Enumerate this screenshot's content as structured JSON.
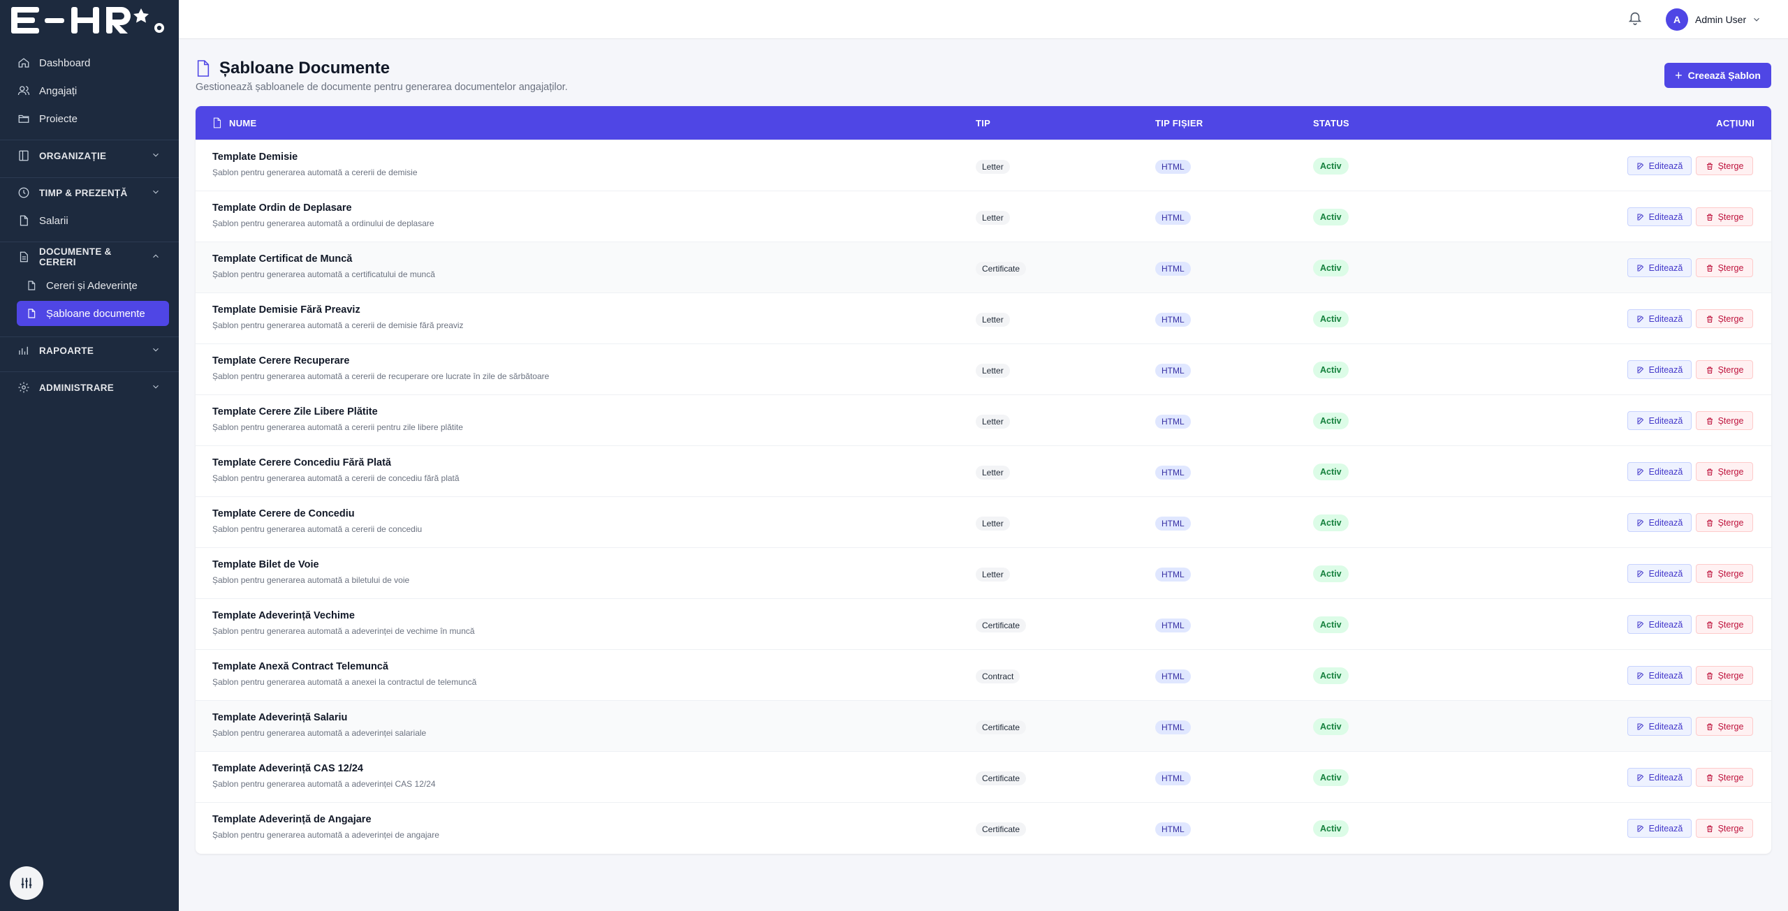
{
  "app": {
    "logo_text": "E-HR"
  },
  "sidebar": {
    "items": [
      {
        "label": "Dashboard",
        "icon": "home-icon"
      },
      {
        "label": "Angajați",
        "icon": "users-icon"
      },
      {
        "label": "Proiecte",
        "icon": "folder-icon"
      }
    ],
    "sections": [
      {
        "label": "ORGANIZAȚIE",
        "icon": "building-icon",
        "expanded": false
      },
      {
        "label": "TIMP & PREZENȚĂ",
        "icon": "clock-icon",
        "expanded": false
      },
      {
        "label": "DOCUMENTE & CERERI",
        "icon": "document-icon",
        "expanded": true
      },
      {
        "label": "RAPOARTE",
        "icon": "chart-icon",
        "expanded": false
      },
      {
        "label": "ADMINISTRARE",
        "icon": "gear-icon",
        "expanded": false
      }
    ],
    "salarii": "Salarii",
    "sub_items": [
      {
        "label": "Cereri și Adeverințe",
        "active": false
      },
      {
        "label": "Șabloane documente",
        "active": true
      }
    ]
  },
  "topbar": {
    "user_initial": "A",
    "user_name": "Admin User"
  },
  "page": {
    "title": "Șabloane Documente",
    "subtitle": "Gestionează șabloanele de documente pentru generarea documentelor angajaților.",
    "create_label": "Creează Șablon"
  },
  "table": {
    "columns": {
      "name": "NUME",
      "type": "TIP",
      "file_type": "TIP FIȘIER",
      "status": "STATUS",
      "actions": "ACȚIUNI"
    },
    "edit_label": "Editează",
    "delete_label": "Șterge",
    "rows": [
      {
        "title": "Template Demisie",
        "desc": "Șablon pentru generarea automată a cererii de demisie",
        "type": "Letter",
        "file": "HTML",
        "status": "Activ"
      },
      {
        "title": "Template Ordin de Deplasare",
        "desc": "Șablon pentru generarea automată a ordinului de deplasare",
        "type": "Letter",
        "file": "HTML",
        "status": "Activ"
      },
      {
        "title": "Template Certificat de Muncă",
        "desc": "Șablon pentru generarea automată a certificatului de muncă",
        "type": "Certificate",
        "file": "HTML",
        "status": "Activ"
      },
      {
        "title": "Template Demisie Fără Preaviz",
        "desc": "Șablon pentru generarea automată a cererii de demisie fără preaviz",
        "type": "Letter",
        "file": "HTML",
        "status": "Activ"
      },
      {
        "title": "Template Cerere Recuperare",
        "desc": "Șablon pentru generarea automată a cererii de recuperare ore lucrate în zile de sărbătoare",
        "type": "Letter",
        "file": "HTML",
        "status": "Activ"
      },
      {
        "title": "Template Cerere Zile Libere Plătite",
        "desc": "Șablon pentru generarea automată a cererii pentru zile libere plătite",
        "type": "Letter",
        "file": "HTML",
        "status": "Activ"
      },
      {
        "title": "Template Cerere Concediu Fără Plată",
        "desc": "Șablon pentru generarea automată a cererii de concediu fără plată",
        "type": "Letter",
        "file": "HTML",
        "status": "Activ"
      },
      {
        "title": "Template Cerere de Concediu",
        "desc": "Șablon pentru generarea automată a cererii de concediu",
        "type": "Letter",
        "file": "HTML",
        "status": "Activ"
      },
      {
        "title": "Template Bilet de Voie",
        "desc": "Șablon pentru generarea automată a biletului de voie",
        "type": "Letter",
        "file": "HTML",
        "status": "Activ"
      },
      {
        "title": "Template Adeverință Vechime",
        "desc": "Șablon pentru generarea automată a adeverinței de vechime în muncă",
        "type": "Certificate",
        "file": "HTML",
        "status": "Activ"
      },
      {
        "title": "Template Anexă Contract Telemuncă",
        "desc": "Șablon pentru generarea automată a anexei la contractul de telemuncă",
        "type": "Contract",
        "file": "HTML",
        "status": "Activ"
      },
      {
        "title": "Template Adeverință Salariu",
        "desc": "Șablon pentru generarea automată a adeverinței salariale",
        "type": "Certificate",
        "file": "HTML",
        "status": "Activ"
      },
      {
        "title": "Template Adeverință CAS 12/24",
        "desc": "Șablon pentru generarea automată a adeverinței CAS 12/24",
        "type": "Certificate",
        "file": "HTML",
        "status": "Activ"
      },
      {
        "title": "Template Adeverință de Angajare",
        "desc": "Șablon pentru generarea automată a adeverinței de angajare",
        "type": "Certificate",
        "file": "HTML",
        "status": "Activ"
      }
    ]
  },
  "colors": {
    "accent": "#4f46e5",
    "sidebar": "#1d2a3e",
    "status_active_bg": "#dcfce7",
    "status_active_text": "#15803d"
  }
}
